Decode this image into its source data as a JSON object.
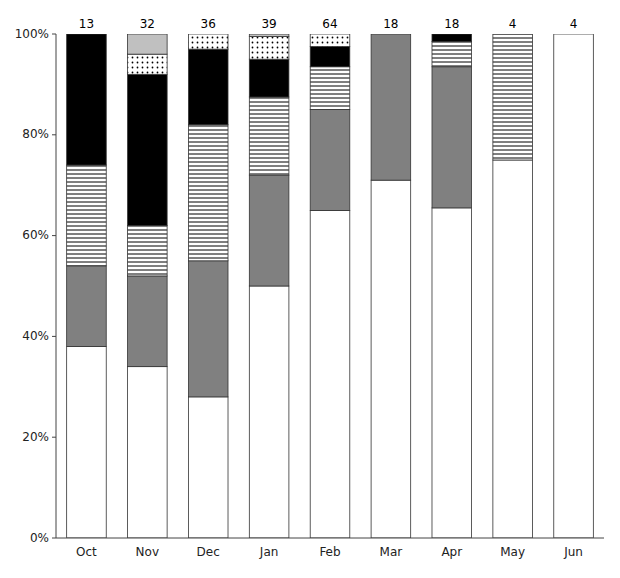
{
  "chart_data": {
    "type": "bar",
    "stacked": true,
    "grid": false,
    "categories": [
      "Oct",
      "Nov",
      "Dec",
      "Jan",
      "Feb",
      "Mar",
      "Apr",
      "May",
      "Jun"
    ],
    "counts": [
      13,
      32,
      36,
      39,
      64,
      18,
      18,
      4,
      4
    ],
    "series": [
      {
        "color": "#ffffff",
        "values": [
          0.38,
          0.34,
          0.28,
          0.5,
          0.65,
          0.71,
          0.655,
          0.75,
          1.0
        ]
      },
      {
        "color": "#808080",
        "values": [
          0.16,
          0.18,
          0.27,
          0.22,
          0.2,
          0.29,
          0.28,
          0.0,
          0.0
        ]
      },
      {
        "color": "#ffffff",
        "values": [
          0.2,
          0.1,
          0.27,
          0.155,
          0.085,
          0.0,
          0.05,
          0.25,
          0.0
        ]
      },
      {
        "color": "#000000",
        "values": [
          0.26,
          0.3,
          0.15,
          0.075,
          0.04,
          0.0,
          0.015,
          0.0,
          0.0
        ]
      },
      {
        "color": "#ffffff",
        "values": [
          0.0,
          0.04,
          0.03,
          0.045,
          0.025,
          0.0,
          0.0,
          0.0,
          0.0
        ]
      },
      {
        "color": "#c0c0c0",
        "values": [
          0.0,
          0.04,
          0.0,
          0.005,
          0.0,
          0.0,
          0.0,
          0.0,
          0.0
        ]
      }
    ],
    "ylim": [
      0,
      1.0
    ],
    "yticks": [
      {
        "value": 0.0,
        "label": "0%"
      },
      {
        "value": 0.2,
        "label": "20%"
      },
      {
        "value": 0.4,
        "label": "40%"
      },
      {
        "value": 0.6,
        "label": "60%"
      },
      {
        "value": 0.8,
        "label": "80%"
      },
      {
        "value": 1.0,
        "label": "100%"
      }
    ]
  }
}
